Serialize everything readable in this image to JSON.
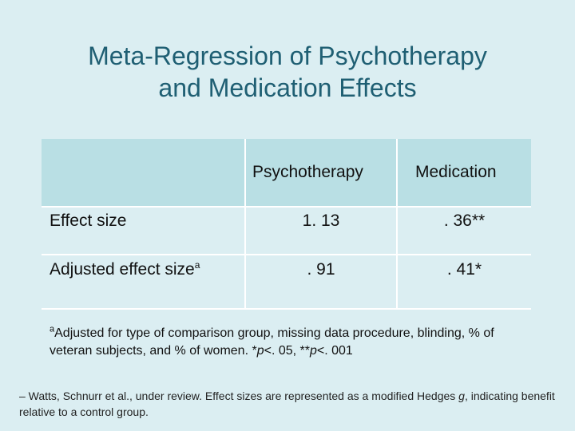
{
  "slide": {
    "title_line1": "Meta-Regression of Psychotherapy",
    "title_line2": "and Medication Effects"
  },
  "table": {
    "columns": [
      "Psychotherapy",
      "Medication"
    ],
    "rows": [
      {
        "label": "Effect size",
        "label_sup": "",
        "psychotherapy": "1. 13",
        "medication": ". 36**"
      },
      {
        "label": "Adjusted effect size",
        "label_sup": "a",
        "psychotherapy": ". 91",
        "medication": ". 41*"
      }
    ],
    "footnote": {
      "marker": "a",
      "text_part1": "Adjusted for type of comparison group, missing data procedure, blinding, % of veteran subjects, and % of women. *",
      "p1": "p",
      "text_part2": "<. 05, **",
      "p2": "p",
      "text_part3": "<. 001"
    }
  },
  "citation": {
    "text_part1": "– Watts, Schnurr et al., under review. Effect sizes are represented as a modified Hedges ",
    "g": "g",
    "text_part2": ", indicating benefit relative to a control group."
  },
  "colors": {
    "background": "#dbeef2",
    "title": "#1f5f73",
    "header_fill": "#b9dfe4"
  }
}
